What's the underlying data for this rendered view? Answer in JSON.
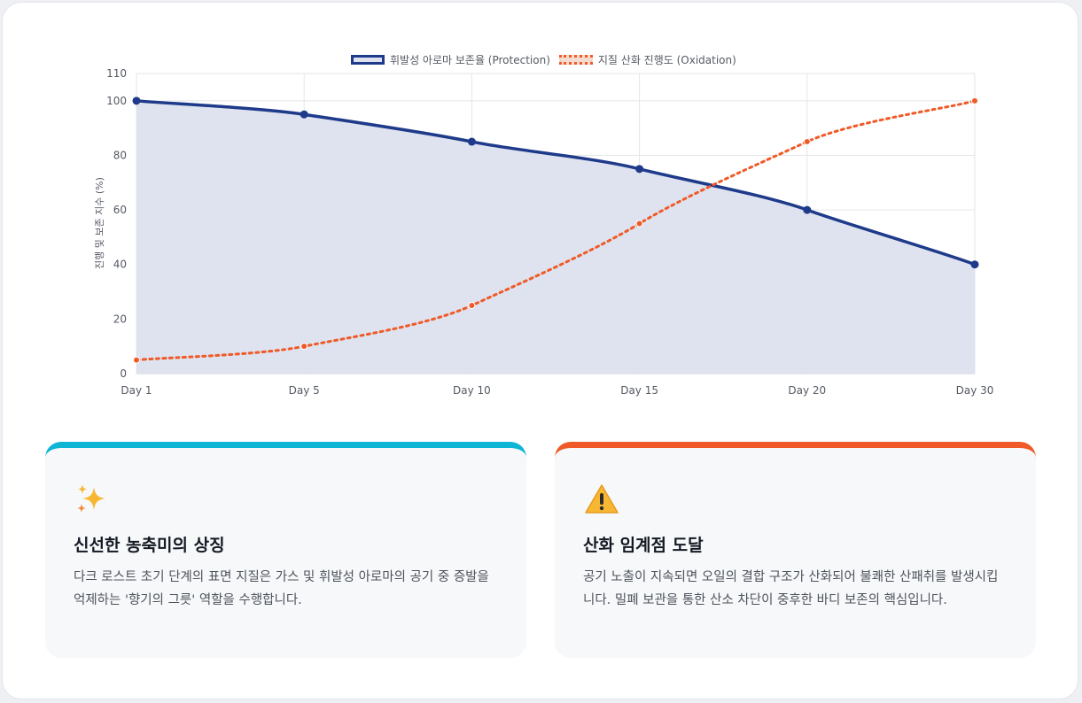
{
  "chart_data": {
    "type": "line",
    "categories": [
      "Day 1",
      "Day 5",
      "Day 10",
      "Day 15",
      "Day 20",
      "Day 30"
    ],
    "series": [
      {
        "name": "휘발성 아로마 보존율 (Protection)",
        "values": [
          100,
          95,
          85,
          75,
          60,
          40
        ],
        "color": "#1e3a8a",
        "fill": "#dde1ee",
        "style": "solid"
      },
      {
        "name": "지질 산화 진행도 (Oxidation)",
        "values": [
          5,
          10,
          25,
          55,
          85,
          100
        ],
        "color": "#ef5a28",
        "style": "dotted"
      }
    ],
    "ylabel": "진행 및 보존 지수 (%)",
    "xlabel": "",
    "ylim": [
      0,
      110
    ],
    "yticks": [
      "0",
      "20",
      "40",
      "60",
      "80",
      "100",
      "110"
    ],
    "grid": true,
    "legend": "top-center"
  },
  "cards": [
    {
      "icon": "sparkles-icon",
      "accent": "#0fb5d4",
      "title": "신선한 농축미의 상징",
      "desc": "다크 로스트 초기 단계의 표면 지질은 가스 및 휘발성 아로마의 공기 중 증발을 억제하는 '향기의 그릇' 역할을 수행합니다."
    },
    {
      "icon": "warning-icon",
      "accent": "#ef5a28",
      "title": "산화 임계점 도달",
      "desc": "공기 노출이 지속되면 오일의 결합 구조가 산화되어 불쾌한 산패취를 발생시킵니다. 밀폐 보관을 통한 산소 차단이 중후한 바디 보존의 핵심입니다."
    }
  ]
}
